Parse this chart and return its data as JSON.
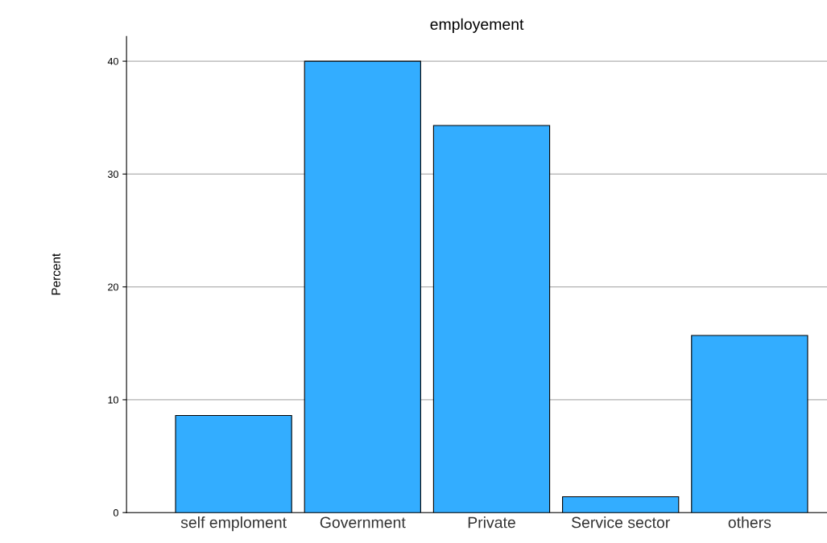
{
  "chart_data": {
    "type": "bar",
    "title": "employement",
    "ylabel": "Percent",
    "categories": [
      "self emploment",
      "Government",
      "Private",
      "Service sector",
      "others"
    ],
    "values": [
      8.6,
      40,
      34.3,
      1.4,
      15.7
    ],
    "color": "#33adff",
    "ylim": [
      0,
      42.2
    ],
    "yticks": [
      0,
      10,
      20,
      30,
      40
    ],
    "grid": "y",
    "legend": false
  }
}
